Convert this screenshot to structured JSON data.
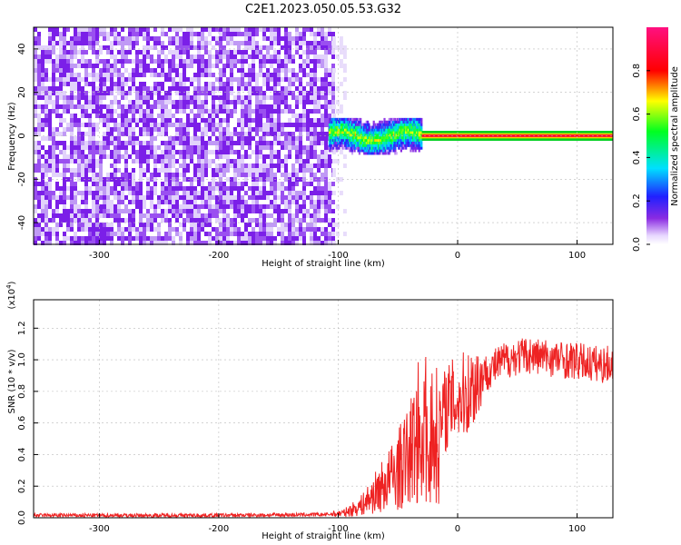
{
  "figure": {
    "title": "C2E1.2023.050.05.53.G32"
  },
  "chart_data": [
    {
      "type": "heatmap",
      "xlabel": "Height of straight line (km)",
      "ylabel": "Frequency (Hz)",
      "xlim": [
        -355,
        130
      ],
      "ylim": [
        -50,
        50
      ],
      "xticks": [
        -300,
        -200,
        -100,
        0,
        100
      ],
      "yticks": [
        -40,
        -20,
        0,
        20,
        40
      ],
      "colorbar": {
        "label": "Normalized spectral amplitude",
        "range": [
          0.0,
          1.0
        ],
        "ticks": [
          "0.0",
          "0.2",
          "0.4",
          "0.6",
          "0.8"
        ],
        "colormap": "rainbow (white-violet-blue-cyan-green-yellow-red-magenta)"
      },
      "regions": [
        {
          "x_range": [
            -355,
            -105
          ],
          "freq_range": [
            -50,
            50
          ],
          "amplitude": 0.05,
          "description": "noise"
        },
        {
          "x_range": [
            -108,
            -30
          ],
          "freq_center": 0,
          "freq_halfwidth": 8,
          "amplitude": 0.5,
          "description": "broadened signal"
        },
        {
          "x_range": [
            -30,
            130
          ],
          "freq_center": 0,
          "freq_halfwidth": 1.5,
          "amplitude": 0.95,
          "description": "steady tone"
        }
      ],
      "grid": true
    },
    {
      "type": "line",
      "xlabel": "Height of straight line (km)",
      "ylabel": "SNR (10 * v/v)",
      "y_multiplier": "(x10^4)",
      "xlim": [
        -355,
        130
      ],
      "ylim": [
        0,
        1.38
      ],
      "xticks": [
        -300,
        -200,
        -100,
        0,
        100
      ],
      "yticks": [
        "0.0",
        "0.2",
        "0.4",
        "0.6",
        "0.8",
        "1.0",
        "1.2"
      ],
      "series": [
        {
          "color": "#ee2222",
          "x": [
            -355,
            -300,
            -200,
            -110,
            -95,
            -80,
            -70,
            -60,
            -50,
            -40,
            -35,
            -30,
            -25,
            -20,
            -15,
            -10,
            0,
            10,
            20,
            30,
            40,
            50,
            60,
            70,
            80,
            90,
            100,
            110,
            120,
            130
          ],
          "values": [
            0.015,
            0.015,
            0.015,
            0.02,
            0.03,
            0.08,
            0.15,
            0.22,
            0.3,
            0.4,
            0.5,
            0.6,
            0.55,
            0.5,
            0.55,
            0.7,
            0.75,
            0.8,
            0.9,
            0.95,
            1.0,
            1.02,
            1.03,
            1.02,
            1.01,
            1.0,
            0.99,
            0.98,
            0.97,
            0.97
          ]
        }
      ],
      "grid": true
    }
  ]
}
